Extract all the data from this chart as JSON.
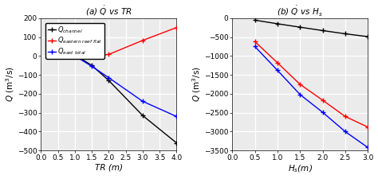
{
  "panel_a": {
    "title": "(a) $\\dot{Q}$ vs $TR$",
    "xlabel": "TR (m)",
    "ylabel": "$Q$ (m$^3$/s)",
    "xlim": [
      0,
      4
    ],
    "ylim": [
      -500,
      200
    ],
    "yticks": [
      -500,
      -400,
      -300,
      -200,
      -100,
      0,
      100,
      200
    ],
    "xticks": [
      0,
      0.5,
      1,
      1.5,
      2,
      2.5,
      3,
      3.5,
      4
    ],
    "lines": [
      {
        "x": [
          0.5,
          1.0,
          1.5,
          2.0,
          3.0,
          4.0
        ],
        "y": [
          10,
          5,
          -50,
          -130,
          -315,
          -460
        ],
        "color": "black",
        "marker": "+",
        "label": "$Q_{channel}$"
      },
      {
        "x": [
          0.5,
          1.0,
          1.5,
          2.0,
          3.0,
          4.0
        ],
        "y": [
          8,
          -3,
          -2,
          8,
          82,
          150
        ],
        "color": "red",
        "marker": "+",
        "label": "$Q_{eastern\\ reef\\ flat}$"
      },
      {
        "x": [
          0.5,
          1.0,
          1.5,
          2.0,
          3.0,
          4.0
        ],
        "y": [
          10,
          0,
          -55,
          -115,
          -240,
          -320
        ],
        "color": "blue",
        "marker": "+",
        "label": "$Q_{east\\ total}$"
      }
    ]
  },
  "panel_b": {
    "title": "(b) $\\dot{Q}$ vs $H_s$",
    "xlabel": "$H_s$(m)",
    "ylabel": "$Q$ (m$^3$/s)",
    "xlim": [
      0,
      3
    ],
    "ylim": [
      -3500,
      0
    ],
    "yticks": [
      -3500,
      -3000,
      -2500,
      -2000,
      -1500,
      -1000,
      -500,
      0
    ],
    "xticks": [
      0,
      0.5,
      1.0,
      1.5,
      2.0,
      2.5,
      3.0
    ],
    "lines": [
      {
        "x": [
          0.5,
          1.0,
          1.5,
          2.0,
          2.5,
          3.0
        ],
        "y": [
          -55,
          -150,
          -240,
          -330,
          -415,
          -490
        ],
        "color": "black",
        "marker": "+",
        "label": "$Q_{channel}$"
      },
      {
        "x": [
          0.5,
          1.0,
          1.5,
          2.0,
          2.5,
          3.0
        ],
        "y": [
          -620,
          -1180,
          -1750,
          -2170,
          -2600,
          -2880
        ],
        "color": "red",
        "marker": "+",
        "label": "$Q_{eastern\\ reef\\ flat}$"
      },
      {
        "x": [
          0.5,
          1.0,
          1.5,
          2.0,
          2.5,
          3.0
        ],
        "y": [
          -750,
          -1380,
          -2020,
          -2490,
          -3000,
          -3420
        ],
        "color": "blue",
        "marker": "+",
        "label": "$Q_{east\\ total}$"
      }
    ]
  },
  "background_color": "#ebebeb",
  "grid_color": "white",
  "tick_fontsize": 6.5,
  "label_fontsize": 7.5,
  "title_fontsize": 7.5,
  "legend_fontsize": 6.0,
  "linewidth": 1.0,
  "markersize": 5
}
